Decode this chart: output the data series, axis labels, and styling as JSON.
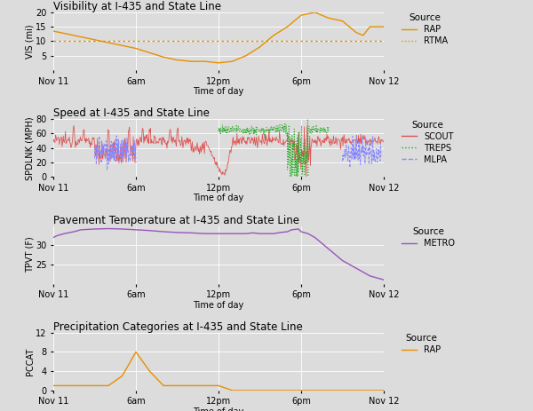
{
  "fig_width": 6.0,
  "fig_height": 4.63,
  "dpi": 100,
  "bg_color": "#dcdcdc",
  "plot_bg_color": "#dcdcdc",
  "grid_color": "white",
  "titles": [
    "Visibility at I-435 and State Line",
    "Speed at I-435 and State Line",
    "Pavement Temperature at I-435 and State Line",
    "Precipitation Categories at I-435 and State Line"
  ],
  "ylabels": [
    "VIS (mi)",
    "SPDLNK (MPH)",
    "TPVT (F)",
    "PCCAT"
  ],
  "xlabel": "Time of day",
  "xtick_labels": [
    "Nov 11",
    "6am",
    "12pm",
    "6pm",
    "Nov 12"
  ],
  "xtick_positions": [
    0,
    6,
    12,
    18,
    24
  ],
  "panel1": {
    "rap_x": [
      0,
      0.5,
      1,
      1.5,
      2,
      2.5,
      3,
      4,
      5,
      6,
      7,
      8,
      9,
      10,
      11,
      12,
      13,
      14,
      15,
      16,
      17,
      18,
      19,
      20,
      21,
      22,
      22.5,
      23,
      24
    ],
    "rap_y": [
      13.5,
      13,
      12.5,
      12,
      11.5,
      11,
      10.5,
      9.5,
      8.5,
      7.5,
      6,
      4.5,
      3.5,
      3,
      3,
      2.5,
      3,
      5,
      8,
      12,
      15,
      19,
      20,
      18,
      17,
      13,
      12,
      15,
      15
    ],
    "rtma_x": [
      0,
      1,
      2,
      3,
      4,
      5,
      6,
      7,
      8,
      9,
      10,
      10.5,
      11,
      12,
      13,
      14,
      15,
      16,
      17,
      18,
      19,
      20,
      21,
      22,
      23,
      24
    ],
    "rtma_y": [
      10,
      10,
      10,
      10,
      10,
      10,
      10,
      10,
      10,
      10,
      10,
      10,
      10,
      10,
      10,
      10,
      10,
      10,
      10,
      10,
      10,
      10,
      10,
      10,
      10,
      10
    ],
    "ylim": [
      0,
      20
    ],
    "yticks": [
      5,
      10,
      15,
      20
    ],
    "color_rap": "#E69000",
    "color_rtma": "#E69000"
  },
  "panel2": {
    "scout_color": "#E05050",
    "treps_color": "#22AA22",
    "mlpa_color": "#8888FF",
    "ylim": [
      0,
      80
    ],
    "yticks": [
      0,
      20,
      40,
      60,
      80
    ],
    "scout_base": 50,
    "scout_noise": 4,
    "treps_start": 12,
    "treps_end": 20,
    "treps_base": 65,
    "mlpa_start1": 3,
    "mlpa_end1": 6,
    "mlpa_start2": 21,
    "mlpa_end2": 23.8
  },
  "panel3": {
    "metro_x": [
      0,
      0.3,
      0.8,
      1.5,
      2,
      3,
      4,
      5,
      6,
      7,
      8,
      9,
      10,
      11,
      12,
      13,
      14,
      14.5,
      15,
      16,
      16.5,
      17,
      17.3,
      17.8,
      18,
      18.5,
      19,
      19.5,
      20,
      20.5,
      21,
      21.5,
      22,
      22.5,
      23,
      23.5,
      24
    ],
    "metro_y": [
      32,
      32.5,
      33,
      33.5,
      34,
      34.2,
      34.3,
      34.2,
      34,
      33.8,
      33.5,
      33.3,
      33.2,
      33,
      33,
      33,
      33,
      33.2,
      33,
      33,
      33.3,
      33.5,
      34,
      34.2,
      33.5,
      33,
      32,
      30.5,
      29,
      27.5,
      26,
      25,
      24,
      23,
      22,
      21.5,
      21
    ],
    "ylim": [
      20,
      35
    ],
    "yticks": [
      25,
      30
    ],
    "color": "#9955BB"
  },
  "panel4": {
    "rap_x": [
      0,
      0.5,
      1,
      2,
      3,
      4,
      5,
      6,
      7,
      8,
      9,
      10,
      11,
      12,
      13,
      14,
      15,
      16,
      17,
      18,
      19,
      20,
      21,
      22,
      23,
      24
    ],
    "rap_y": [
      1,
      1,
      1,
      1,
      1,
      1,
      3,
      8,
      4,
      1,
      1,
      1,
      1,
      1,
      0,
      0,
      0,
      0,
      0,
      0,
      0,
      0,
      0,
      0,
      0,
      0
    ],
    "ylim": [
      0,
      12
    ],
    "yticks": [
      0,
      4,
      8,
      12
    ],
    "color": "#E69000"
  },
  "legend_title_fontsize": 7.5,
  "legend_fontsize": 7,
  "axis_fontsize": 7,
  "title_fontsize": 8.5
}
